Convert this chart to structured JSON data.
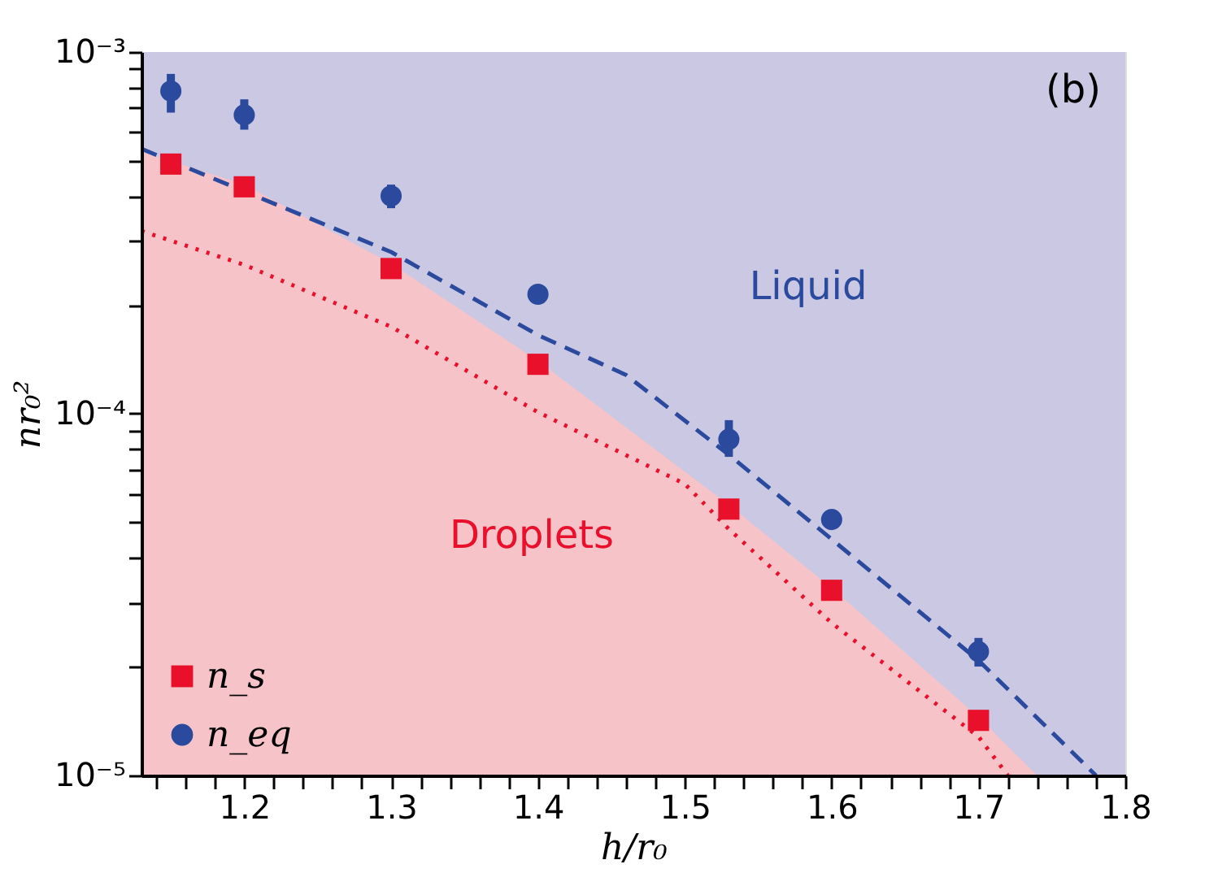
{
  "chart_data": {
    "type": "scatter",
    "xlabel": "h/r₀",
    "ylabel": "nr₀²",
    "log": "y",
    "grid": false,
    "legend": "bottom left",
    "xlim": [
      1.13,
      1.8
    ],
    "xticks": [
      {
        "value": 1.14,
        "label": null
      },
      {
        "value": 1.16,
        "label": null
      },
      {
        "value": 1.18,
        "label": null
      },
      1.2,
      {
        "value": 1.22,
        "label": null
      },
      {
        "value": 1.24,
        "label": null
      },
      {
        "value": 1.26,
        "label": null
      },
      {
        "value": 1.28,
        "label": null
      },
      1.3,
      {
        "value": 1.32,
        "label": null
      },
      {
        "value": 1.34,
        "label": null
      },
      {
        "value": 1.36,
        "label": null
      },
      {
        "value": 1.38,
        "label": null
      },
      1.4,
      {
        "value": 1.42,
        "label": null
      },
      {
        "value": 1.44,
        "label": null
      },
      {
        "value": 1.46,
        "label": null
      },
      {
        "value": 1.48,
        "label": null
      },
      1.5,
      {
        "value": 1.52,
        "label": null
      },
      {
        "value": 1.54,
        "label": null
      },
      {
        "value": 1.56,
        "label": null
      },
      {
        "value": 1.58,
        "label": null
      },
      1.6,
      {
        "value": 1.62,
        "label": null
      },
      {
        "value": 1.64,
        "label": null
      },
      {
        "value": 1.66,
        "label": null
      },
      {
        "value": 1.68,
        "label": null
      },
      1.7,
      {
        "value": 1.72,
        "label": null
      },
      {
        "value": 1.74,
        "label": null
      },
      {
        "value": 1.76,
        "label": null
      },
      {
        "value": 1.78,
        "label": null
      },
      1.8
    ],
    "ylim": [
      1e-05,
      0.001
    ],
    "yticks": [
      {
        "value": 1e-05,
        "label": "10⁻⁵"
      },
      {
        "value": 2e-05,
        "label": null
      },
      {
        "value": 3e-05,
        "label": null
      },
      {
        "value": 4e-05,
        "label": null
      },
      {
        "value": 5e-05,
        "label": null
      },
      {
        "value": 6e-05,
        "label": null
      },
      {
        "value": 7e-05,
        "label": null
      },
      {
        "value": 8e-05,
        "label": null
      },
      {
        "value": 9e-05,
        "label": null
      },
      {
        "value": 0.0001,
        "label": "10⁻⁴"
      },
      {
        "value": 0.0002,
        "label": null
      },
      {
        "value": 0.0003,
        "label": null
      },
      {
        "value": 0.0004,
        "label": null
      },
      {
        "value": 0.0005,
        "label": null
      },
      {
        "value": 0.0006,
        "label": null
      },
      {
        "value": 0.0007,
        "label": null
      },
      {
        "value": 0.0008,
        "label": null
      },
      {
        "value": 0.0009,
        "label": null
      },
      {
        "value": 0.001,
        "label": "10⁻³"
      }
    ],
    "series": [
      {
        "type": "area",
        "color": "#f6c3c9",
        "x": [
          1.13,
          1.2,
          1.3,
          1.4,
          1.53,
          1.6,
          1.7,
          1.74
        ],
        "values": [
          0.00053,
          0.00043,
          0.00026,
          0.00014,
          5.6e-05,
          3.3e-05,
          1.45e-05,
          1e-05
        ]
      },
      {
        "type": "line",
        "color": "#e8102a",
        "line_style": "dotted",
        "x": [
          1.13,
          1.2,
          1.3,
          1.4,
          1.5,
          1.53,
          1.6,
          1.7,
          1.72
        ],
        "values": [
          0.00032,
          0.000258,
          0.000174,
          0.000101,
          6.4e-05,
          4.8e-05,
          2.64e-05,
          1.28e-05,
          1e-05
        ]
      },
      {
        "type": "line",
        "color": "#2b4a9e",
        "line_style": "dashed",
        "x": [
          1.13,
          1.3,
          1.4,
          1.46,
          1.53,
          1.6,
          1.7,
          1.78
        ],
        "values": [
          0.00054,
          0.00028,
          0.000165,
          0.000128,
          7.7e-05,
          4.5e-05,
          2.08e-05,
          1e-05
        ]
      },
      {
        "name": "n_s",
        "color": "#e8102a",
        "marker": "square",
        "x": [
          1.15,
          1.2,
          1.3,
          1.4,
          1.53,
          1.6,
          1.7
        ],
        "values": [
          0.00049,
          0.000424,
          0.000252,
          0.000137,
          5.45e-05,
          3.25e-05,
          1.42e-05
        ]
      },
      {
        "name": "n_eq",
        "color": "#2b4a9e",
        "marker": "circle",
        "x": [
          1.15,
          1.2,
          1.3,
          1.4,
          1.53,
          1.6,
          1.7
        ],
        "values": [
          0.00078,
          0.00067,
          0.0004,
          0.000214,
          8.5e-05,
          5.1e-05,
          2.2e-05
        ],
        "errors": [
          [
            0.00068,
            0.00087
          ],
          [
            0.00061,
            0.00074
          ],
          [
            0.00037,
            0.00043
          ],
          [
            0.000208,
            0.00022
          ],
          [
            7.6e-05,
            9.6e-05
          ],
          null,
          [
            2e-05,
            2.4e-05
          ]
        ]
      }
    ],
    "bands": [
      {
        "axis": "y",
        "from": 1e-05,
        "to": 0.001,
        "color": "#cbc8e4"
      }
    ],
    "annotations": [
      "Liquid",
      "Droplets",
      "(b)"
    ]
  }
}
